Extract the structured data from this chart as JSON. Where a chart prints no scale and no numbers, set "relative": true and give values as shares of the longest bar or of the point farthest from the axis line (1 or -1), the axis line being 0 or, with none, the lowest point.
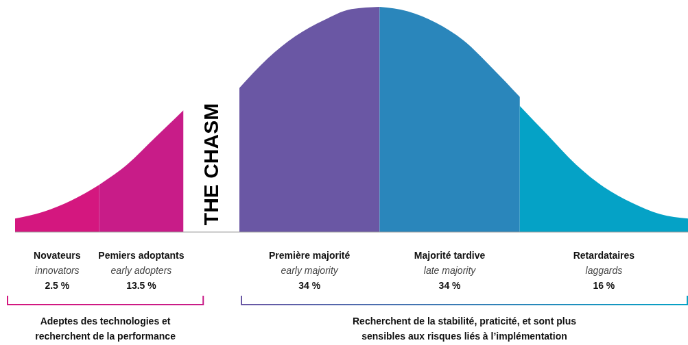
{
  "chart_data": {
    "type": "area",
    "relative": true,
    "categories": [
      null,
      null,
      null,
      null,
      null,
      null,
      null,
      null,
      null,
      null,
      null,
      null,
      null,
      null,
      null,
      null,
      null,
      null,
      null,
      null,
      null,
      null,
      null,
      null,
      null
    ],
    "series": [
      {
        "name": "Novateurs",
        "color": "#d4177f",
        "values": [
          0.06,
          0.09,
          0.14,
          0.21,
          null,
          null,
          null,
          null,
          null,
          null,
          null,
          null,
          null,
          null,
          null,
          null,
          null,
          null,
          null,
          null,
          null,
          null,
          null,
          null,
          null
        ]
      },
      {
        "name": "Pemiers adoptants",
        "color": "#c81c88",
        "values": [
          null,
          null,
          null,
          0.21,
          0.3,
          0.42,
          0.54,
          null,
          null,
          null,
          null,
          null,
          null,
          null,
          null,
          null,
          null,
          null,
          null,
          null,
          null,
          null,
          null,
          null,
          null
        ]
      },
      {
        "name": "Première majorité",
        "color": "#6a57a4",
        "values": [
          null,
          null,
          null,
          null,
          null,
          null,
          null,
          null,
          0.64,
          0.77,
          0.87,
          0.94,
          0.99,
          1,
          null,
          null,
          null,
          null,
          null,
          null,
          null,
          null,
          null,
          null,
          null
        ]
      },
      {
        "name": "Majorité tardive",
        "color": "#2a86bb",
        "values": [
          null,
          null,
          null,
          null,
          null,
          null,
          null,
          null,
          null,
          null,
          null,
          null,
          null,
          1,
          0.98,
          0.93,
          0.85,
          0.73,
          0.6,
          null,
          null,
          null,
          null,
          null,
          null
        ]
      },
      {
        "name": "Retardataires",
        "color": "#05a2c6",
        "values": [
          null,
          null,
          null,
          null,
          null,
          null,
          null,
          null,
          null,
          null,
          null,
          null,
          null,
          null,
          null,
          null,
          null,
          null,
          0.56,
          0.43,
          0.3,
          0.2,
          0.13,
          0.08,
          0.06
        ]
      }
    ],
    "annotations": [
      "innovators",
      "2.5 %",
      "early adopters",
      "13.5 %",
      "early majority",
      "34 %",
      "late majority",
      "34 %",
      "laggards",
      "16 %",
      "THE CHASM",
      "Adeptes des technologies et recherchent de la performance",
      "Recherchent de la stabilité, praticité, et sont plus sensibles aux risques liés à l’implémentation"
    ]
  }
}
